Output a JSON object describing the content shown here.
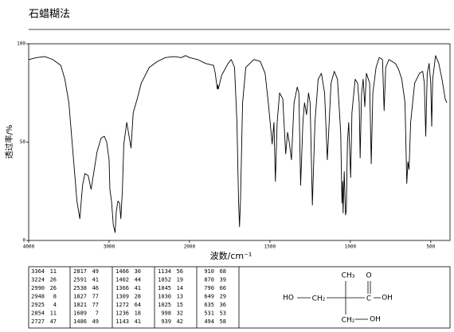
{
  "header": {
    "title": "石蜡糊法"
  },
  "chart_data": {
    "type": "line",
    "color": "#000000",
    "xlabel": "波数/cm⁻¹",
    "ylabel": "透过率/%",
    "xlim": [
      4000,
      400
    ],
    "x_break": 2000,
    "xticks": [
      4000,
      3000,
      2000,
      1500,
      1000,
      500
    ],
    "ylim": [
      0,
      100
    ],
    "yticks": [
      0,
      50,
      100
    ],
    "x": [
      4000,
      3900,
      3800,
      3700,
      3600,
      3550,
      3500,
      3450,
      3400,
      3364,
      3330,
      3300,
      3260,
      3224,
      3200,
      3150,
      3100,
      3060,
      3030,
      3000,
      2990,
      2970,
      2948,
      2925,
      2910,
      2890,
      2870,
      2854,
      2835,
      2817,
      2780,
      2727,
      2700,
      2650,
      2600,
      2500,
      2400,
      2300,
      2200,
      2100,
      2050,
      2000,
      1950,
      1900,
      1850,
      1840,
      1827,
      1824,
      1821,
      1800,
      1760,
      1740,
      1720,
      1705,
      1695,
      1689,
      1683,
      1670,
      1650,
      1600,
      1560,
      1530,
      1510,
      1486,
      1475,
      1466,
      1455,
      1440,
      1420,
      1402,
      1390,
      1380,
      1366,
      1350,
      1330,
      1320,
      1309,
      1295,
      1285,
      1272,
      1260,
      1250,
      1236,
      1220,
      1200,
      1180,
      1160,
      1143,
      1134,
      1120,
      1100,
      1080,
      1060,
      1052,
      1048,
      1045,
      1038,
      1030,
      1025,
      1018,
      1010,
      998,
      990,
      970,
      955,
      945,
      939,
      930,
      920,
      910,
      900,
      880,
      870,
      860,
      840,
      820,
      800,
      790,
      780,
      760,
      720,
      700,
      680,
      660,
      649,
      642,
      635,
      625,
      600,
      570,
      550,
      540,
      531,
      522,
      510,
      500,
      494,
      488,
      470,
      450,
      430,
      410,
      400
    ],
    "values": [
      92,
      93,
      93.5,
      92,
      89,
      82,
      70,
      45,
      20,
      11,
      28,
      34,
      33,
      26,
      32,
      45,
      52,
      53,
      50,
      41,
      26,
      20,
      8,
      4,
      15,
      20,
      19,
      11,
      25,
      49,
      60,
      47,
      65,
      72,
      80,
      88,
      91,
      93,
      93.5,
      93,
      94,
      93,
      92,
      90,
      89,
      85,
      77,
      79,
      77,
      84,
      90,
      92,
      88,
      60,
      20,
      7,
      20,
      70,
      88,
      92,
      91,
      85,
      70,
      49,
      60,
      30,
      60,
      75,
      72,
      44,
      55,
      50,
      41,
      70,
      78,
      75,
      28,
      60,
      70,
      64,
      75,
      70,
      18,
      60,
      82,
      85,
      75,
      41,
      56,
      80,
      86,
      82,
      55,
      19,
      30,
      14,
      35,
      13,
      15,
      50,
      60,
      32,
      65,
      82,
      80,
      70,
      42,
      75,
      82,
      68,
      85,
      80,
      39,
      75,
      88,
      93,
      92,
      66,
      88,
      92,
      90,
      87,
      82,
      70,
      29,
      40,
      36,
      60,
      80,
      85,
      86,
      80,
      53,
      85,
      90,
      80,
      58,
      82,
      94,
      90,
      82,
      72,
      70
    ]
  },
  "peak_table": {
    "columns": [
      [
        [
          3364,
          11
        ],
        [
          3224,
          26
        ],
        [
          2990,
          26
        ],
        [
          2948,
          8
        ],
        [
          2925,
          4
        ],
        [
          2854,
          11
        ],
        [
          2727,
          47
        ]
      ],
      [
        [
          2817,
          49
        ],
        [
          2591,
          41
        ],
        [
          2538,
          46
        ],
        [
          1827,
          77
        ],
        [
          1821,
          77
        ],
        [
          1689,
          7
        ],
        [
          1486,
          49
        ]
      ],
      [
        [
          1466,
          30
        ],
        [
          1402,
          44
        ],
        [
          1366,
          41
        ],
        [
          1309,
          28
        ],
        [
          1272,
          64
        ],
        [
          1236,
          18
        ],
        [
          1143,
          41
        ]
      ],
      [
        [
          1134,
          56
        ],
        [
          1052,
          19
        ],
        [
          1045,
          14
        ],
        [
          1030,
          13
        ],
        [
          1025,
          15
        ],
        [
          998,
          32
        ],
        [
          939,
          42
        ]
      ],
      [
        [
          910,
          68
        ],
        [
          870,
          39
        ],
        [
          790,
          66
        ],
        [
          649,
          29
        ],
        [
          635,
          36
        ],
        [
          531,
          53
        ],
        [
          494,
          58
        ]
      ]
    ]
  },
  "structure": {
    "labels": [
      "HO",
      "CH₂",
      "C",
      "OH",
      "CH₃",
      "O",
      "CH₂",
      "OH"
    ]
  }
}
